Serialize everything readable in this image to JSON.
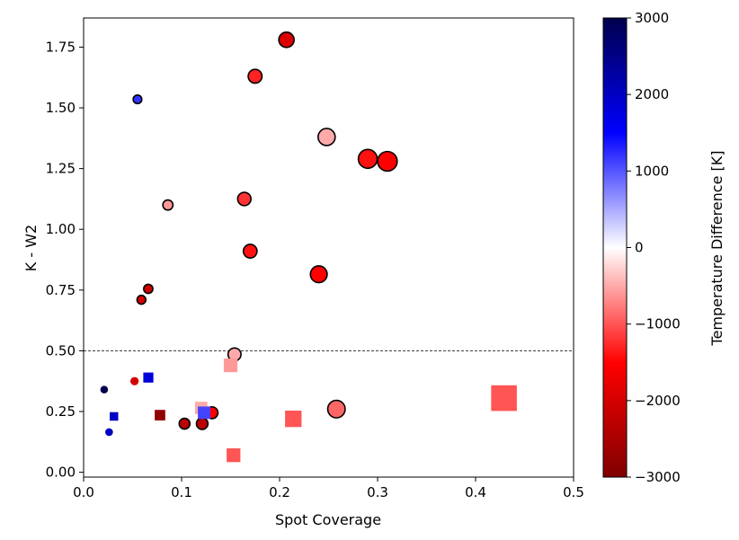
{
  "chart_data": {
    "type": "scatter",
    "title": "",
    "xlabel": "Spot Coverage",
    "ylabel": "K - W2",
    "xlim": [
      0.0,
      0.5
    ],
    "ylim": [
      -0.02,
      1.87
    ],
    "xticks": [
      0.0,
      0.1,
      0.2,
      0.3,
      0.4,
      0.5
    ],
    "xtick_labels": [
      "0.0",
      "0.1",
      "0.2",
      "0.3",
      "0.4",
      "0.5"
    ],
    "yticks": [
      0.0,
      0.25,
      0.5,
      0.75,
      1.0,
      1.25,
      1.5,
      1.75
    ],
    "ytick_labels": [
      "0.00",
      "0.25",
      "0.50",
      "0.75",
      "1.00",
      "1.25",
      "1.50",
      "1.75"
    ],
    "reference_line": {
      "y": 0.5,
      "style": "dashed"
    },
    "colorbar": {
      "label": "Temperature Difference [K]",
      "range": [
        -3000,
        3000
      ],
      "ticks": [
        3000,
        2000,
        1000,
        0,
        -1000,
        -2000,
        -3000
      ],
      "tick_labels": [
        "3000",
        "2000",
        "1000",
        "0",
        "−1000",
        "−2000",
        "−3000"
      ],
      "colormap": "seismic_r"
    },
    "circles_note": "Circles have black outlines; squares have no outline. Marker size roughly scales with spot coverage.",
    "series": [
      {
        "name": "circles",
        "marker": "circle",
        "points": [
          {
            "x": 0.207,
            "y": 1.78,
            "temp_diff": -1900
          },
          {
            "x": 0.175,
            "y": 1.63,
            "temp_diff": -1300
          },
          {
            "x": 0.055,
            "y": 1.535,
            "temp_diff": 1200
          },
          {
            "x": 0.248,
            "y": 1.38,
            "temp_diff": -500
          },
          {
            "x": 0.29,
            "y": 1.29,
            "temp_diff": -1400
          },
          {
            "x": 0.31,
            "y": 1.28,
            "temp_diff": -1500
          },
          {
            "x": 0.164,
            "y": 1.125,
            "temp_diff": -1200
          },
          {
            "x": 0.086,
            "y": 1.1,
            "temp_diff": -600
          },
          {
            "x": 0.17,
            "y": 0.91,
            "temp_diff": -1400
          },
          {
            "x": 0.24,
            "y": 0.815,
            "temp_diff": -1500
          },
          {
            "x": 0.066,
            "y": 0.755,
            "temp_diff": -2100
          },
          {
            "x": 0.059,
            "y": 0.71,
            "temp_diff": -2000
          },
          {
            "x": 0.154,
            "y": 0.485,
            "temp_diff": -500
          },
          {
            "x": 0.258,
            "y": 0.26,
            "temp_diff": -900
          },
          {
            "x": 0.131,
            "y": 0.245,
            "temp_diff": -1500
          },
          {
            "x": 0.103,
            "y": 0.2,
            "temp_diff": -2300
          },
          {
            "x": 0.121,
            "y": 0.2,
            "temp_diff": -2300
          }
        ]
      },
      {
        "name": "small dots",
        "marker": "dot",
        "points": [
          {
            "x": 0.021,
            "y": 0.34,
            "temp_diff": 3000
          },
          {
            "x": 0.052,
            "y": 0.375,
            "temp_diff": -2000
          },
          {
            "x": 0.026,
            "y": 0.165,
            "temp_diff": 2000
          }
        ]
      },
      {
        "name": "squares",
        "marker": "square",
        "points": [
          {
            "x": 0.066,
            "y": 0.39,
            "temp_diff": 1800
          },
          {
            "x": 0.031,
            "y": 0.23,
            "temp_diff": 2000
          },
          {
            "x": 0.078,
            "y": 0.235,
            "temp_diff": -2800
          },
          {
            "x": 0.15,
            "y": 0.44,
            "temp_diff": -600
          },
          {
            "x": 0.12,
            "y": 0.265,
            "temp_diff": -500
          },
          {
            "x": 0.123,
            "y": 0.245,
            "temp_diff": 1100
          },
          {
            "x": 0.214,
            "y": 0.22,
            "temp_diff": -1000
          },
          {
            "x": 0.153,
            "y": 0.07,
            "temp_diff": -1000
          },
          {
            "x": 0.429,
            "y": 0.305,
            "temp_diff": -1000
          }
        ]
      }
    ]
  }
}
